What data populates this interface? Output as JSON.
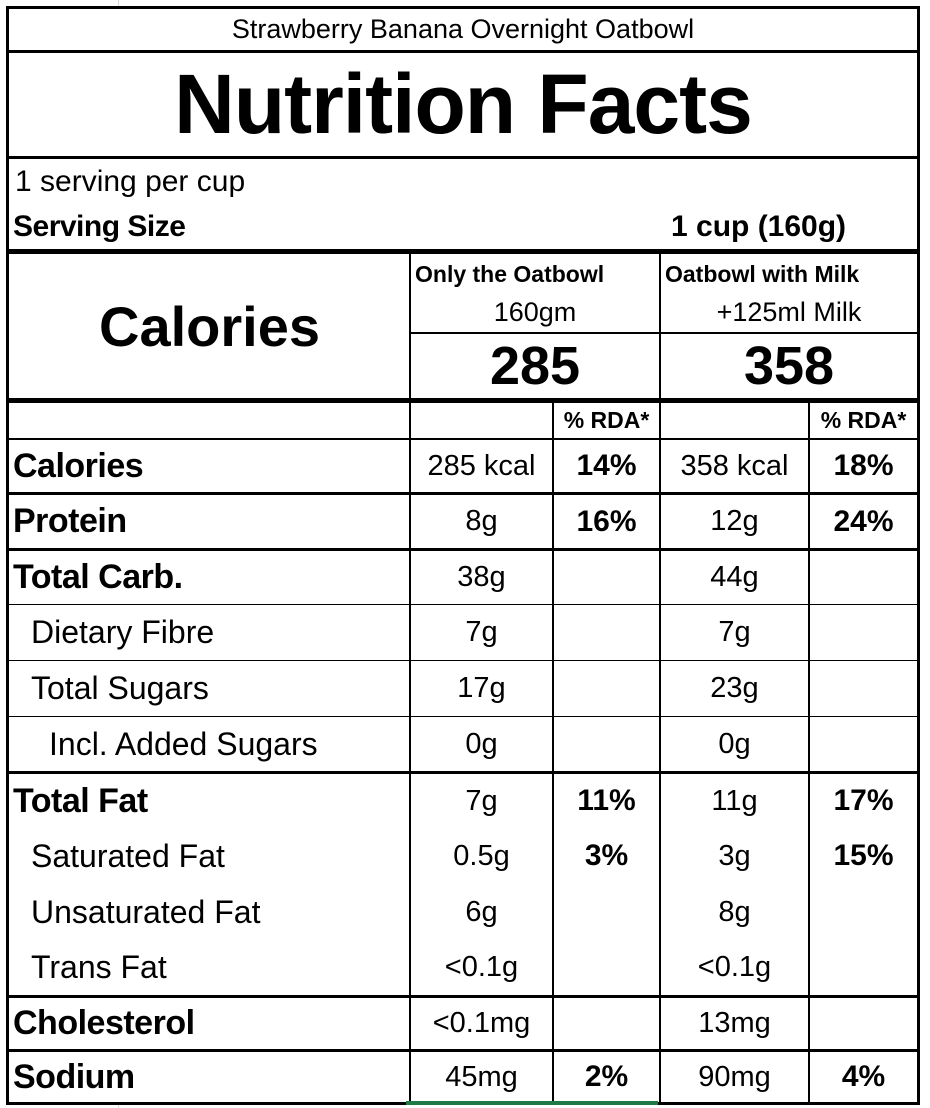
{
  "product_name": "Strawberry Banana Overnight Oatbowl",
  "heading": "Nutrition Facts",
  "servings_per": "1 serving per cup",
  "serving_size_label": "Serving Size",
  "serving_size_value": "1 cup (160g)",
  "calories_label": "Calories",
  "columns": [
    {
      "title": "Only the Oatbowl",
      "subtitle": "160gm",
      "calories": "285"
    },
    {
      "title": "Oatbowl with Milk",
      "subtitle": "+125ml Milk",
      "calories": "358"
    }
  ],
  "rda_header": "% RDA*",
  "rows": [
    {
      "label": "Calories",
      "a": "285 kcal",
      "a_rda": "14%",
      "b": "358 kcal",
      "b_rda": "18%"
    },
    {
      "label": "Protein",
      "a": "8g",
      "a_rda": "16%",
      "b": "12g",
      "b_rda": "24%"
    },
    {
      "label": "Total Carb.",
      "a": "38g",
      "a_rda": "",
      "b": "44g",
      "b_rda": ""
    },
    {
      "label": "Dietary Fibre",
      "a": "7g",
      "a_rda": "",
      "b": "7g",
      "b_rda": ""
    },
    {
      "label": "Total Sugars",
      "a": "17g",
      "a_rda": "",
      "b": "23g",
      "b_rda": ""
    },
    {
      "label": "Incl. Added Sugars",
      "a": "0g",
      "a_rda": "",
      "b": "0g",
      "b_rda": ""
    },
    {
      "label": "Total Fat",
      "a": "7g",
      "a_rda": "11%",
      "b": "11g",
      "b_rda": "17%"
    },
    {
      "label": "Saturated Fat",
      "a": "0.5g",
      "a_rda": "3%",
      "b": "3g",
      "b_rda": "15%"
    },
    {
      "label": "Unsaturated Fat",
      "a": "6g",
      "a_rda": "",
      "b": "8g",
      "b_rda": ""
    },
    {
      "label": "Trans Fat",
      "a": "<0.1g",
      "a_rda": "",
      "b": "<0.1g",
      "b_rda": ""
    },
    {
      "label": "Cholesterol",
      "a": "<0.1mg",
      "a_rda": "",
      "b": "13mg",
      "b_rda": ""
    },
    {
      "label": "Sodium",
      "a": "45mg",
      "a_rda": "2%",
      "b": "90mg",
      "b_rda": "4%"
    }
  ]
}
